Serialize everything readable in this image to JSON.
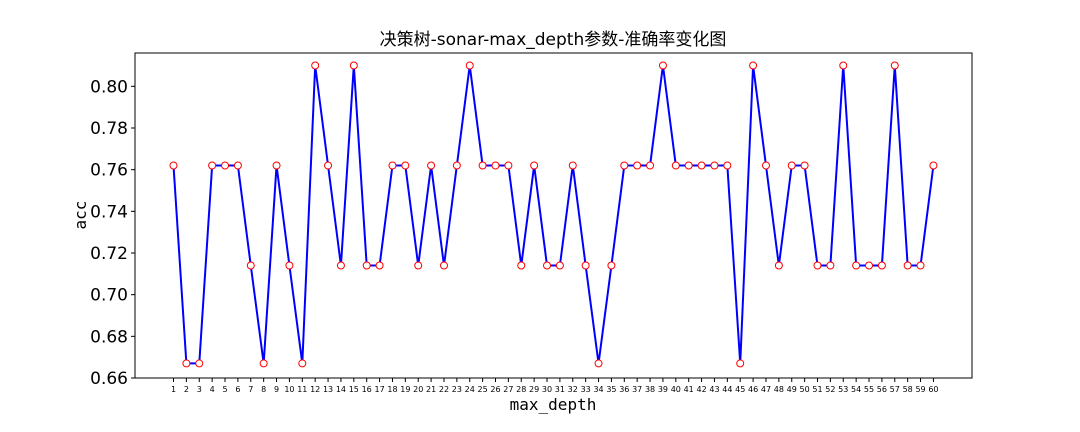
{
  "chart_data": {
    "type": "line",
    "title": "决策树-sonar-max_depth参数-准确率变化图",
    "xlabel": "max_depth",
    "ylabel": "acc",
    "ylim": [
      0.66,
      0.816
    ],
    "yticks": [
      "0.66",
      "0.68",
      "0.70",
      "0.72",
      "0.74",
      "0.76",
      "0.78",
      "0.80"
    ],
    "grid": false,
    "line_color": "#0000ff",
    "marker_edge_color": "#ff0000",
    "marker_face_color": "#ffffff",
    "x": [
      1,
      2,
      3,
      4,
      5,
      6,
      7,
      8,
      9,
      10,
      11,
      12,
      13,
      14,
      15,
      16,
      17,
      18,
      19,
      20,
      21,
      22,
      23,
      24,
      25,
      26,
      27,
      28,
      29,
      30,
      31,
      32,
      33,
      34,
      35,
      36,
      37,
      38,
      39,
      40,
      41,
      42,
      43,
      44,
      45,
      46,
      47,
      48,
      49,
      50,
      51,
      52,
      53,
      54,
      55,
      56,
      57,
      58,
      59,
      60
    ],
    "series": [
      {
        "values": [
          0.762,
          0.667,
          0.667,
          0.762,
          0.762,
          0.762,
          0.714,
          0.667,
          0.762,
          0.714,
          0.667,
          0.81,
          0.762,
          0.714,
          0.81,
          0.714,
          0.714,
          0.762,
          0.762,
          0.714,
          0.762,
          0.714,
          0.762,
          0.81,
          0.762,
          0.762,
          0.762,
          0.714,
          0.762,
          0.714,
          0.714,
          0.762,
          0.714,
          0.667,
          0.714,
          0.762,
          0.762,
          0.762,
          0.81,
          0.762,
          0.762,
          0.762,
          0.762,
          0.762,
          0.667,
          0.81,
          0.762,
          0.714,
          0.762,
          0.762,
          0.714,
          0.714,
          0.81,
          0.714,
          0.714,
          0.714,
          0.81,
          0.714,
          0.714,
          0.762
        ]
      }
    ]
  }
}
